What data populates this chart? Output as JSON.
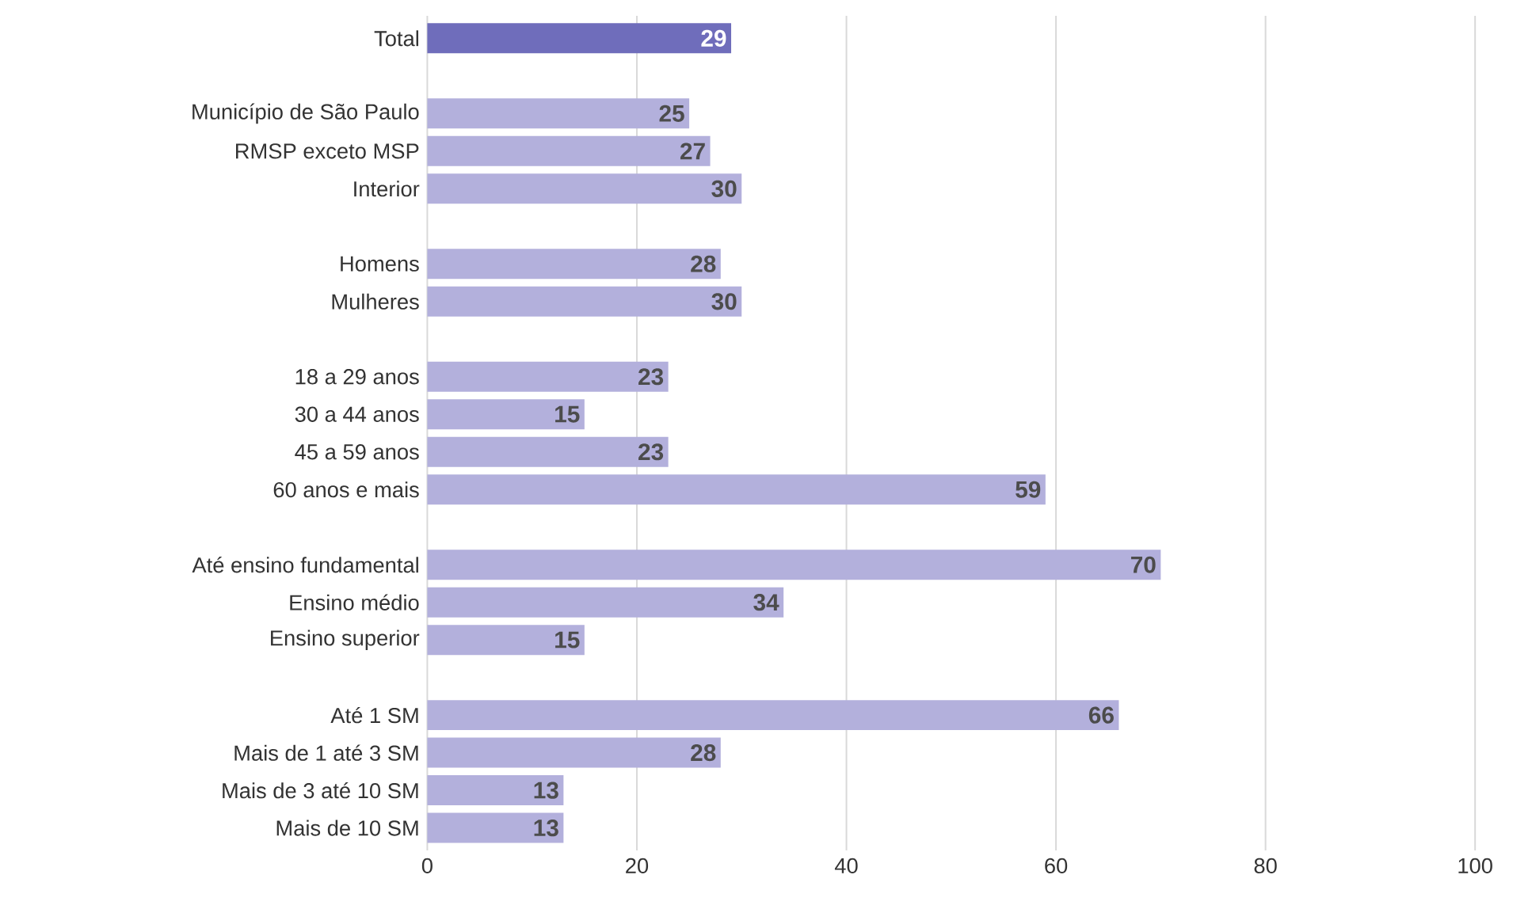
{
  "chart_data": {
    "type": "bar",
    "orientation": "horizontal",
    "categories": [
      "Total",
      null,
      "Município de São Paulo",
      "RMSP exceto MSP",
      "Interior",
      null,
      "Homens",
      "Mulheres",
      null,
      "18 a 29 anos",
      "30 a 44 anos",
      "45 a 59 anos",
      "60 anos e mais",
      null,
      "Até ensino fundamental",
      "Ensino médio",
      "Ensino superior",
      null,
      "Até 1 SM",
      "Mais de 1 até 3 SM",
      "Mais de 3 até 10 SM",
      "Mais de 10 SM"
    ],
    "values": [
      29,
      null,
      25,
      27,
      30,
      null,
      28,
      30,
      null,
      23,
      15,
      23,
      59,
      null,
      70,
      34,
      15,
      null,
      66,
      28,
      13,
      13
    ],
    "colors": [
      "#6f6dbb",
      null,
      "#b3b0dc",
      "#b3b0dc",
      "#b3b0dc",
      null,
      "#b3b0dc",
      "#b3b0dc",
      null,
      "#b3b0dc",
      "#b3b0dc",
      "#b3b0dc",
      "#b3b0dc",
      null,
      "#b3b0dc",
      "#b3b0dc",
      "#b3b0dc",
      null,
      "#b3b0dc",
      "#b3b0dc",
      "#b3b0dc",
      "#b3b0dc"
    ],
    "xlim": [
      0,
      100
    ],
    "xticks": [
      0,
      20,
      40,
      60,
      80,
      100
    ],
    "grid": "x",
    "data_labels": true
  }
}
